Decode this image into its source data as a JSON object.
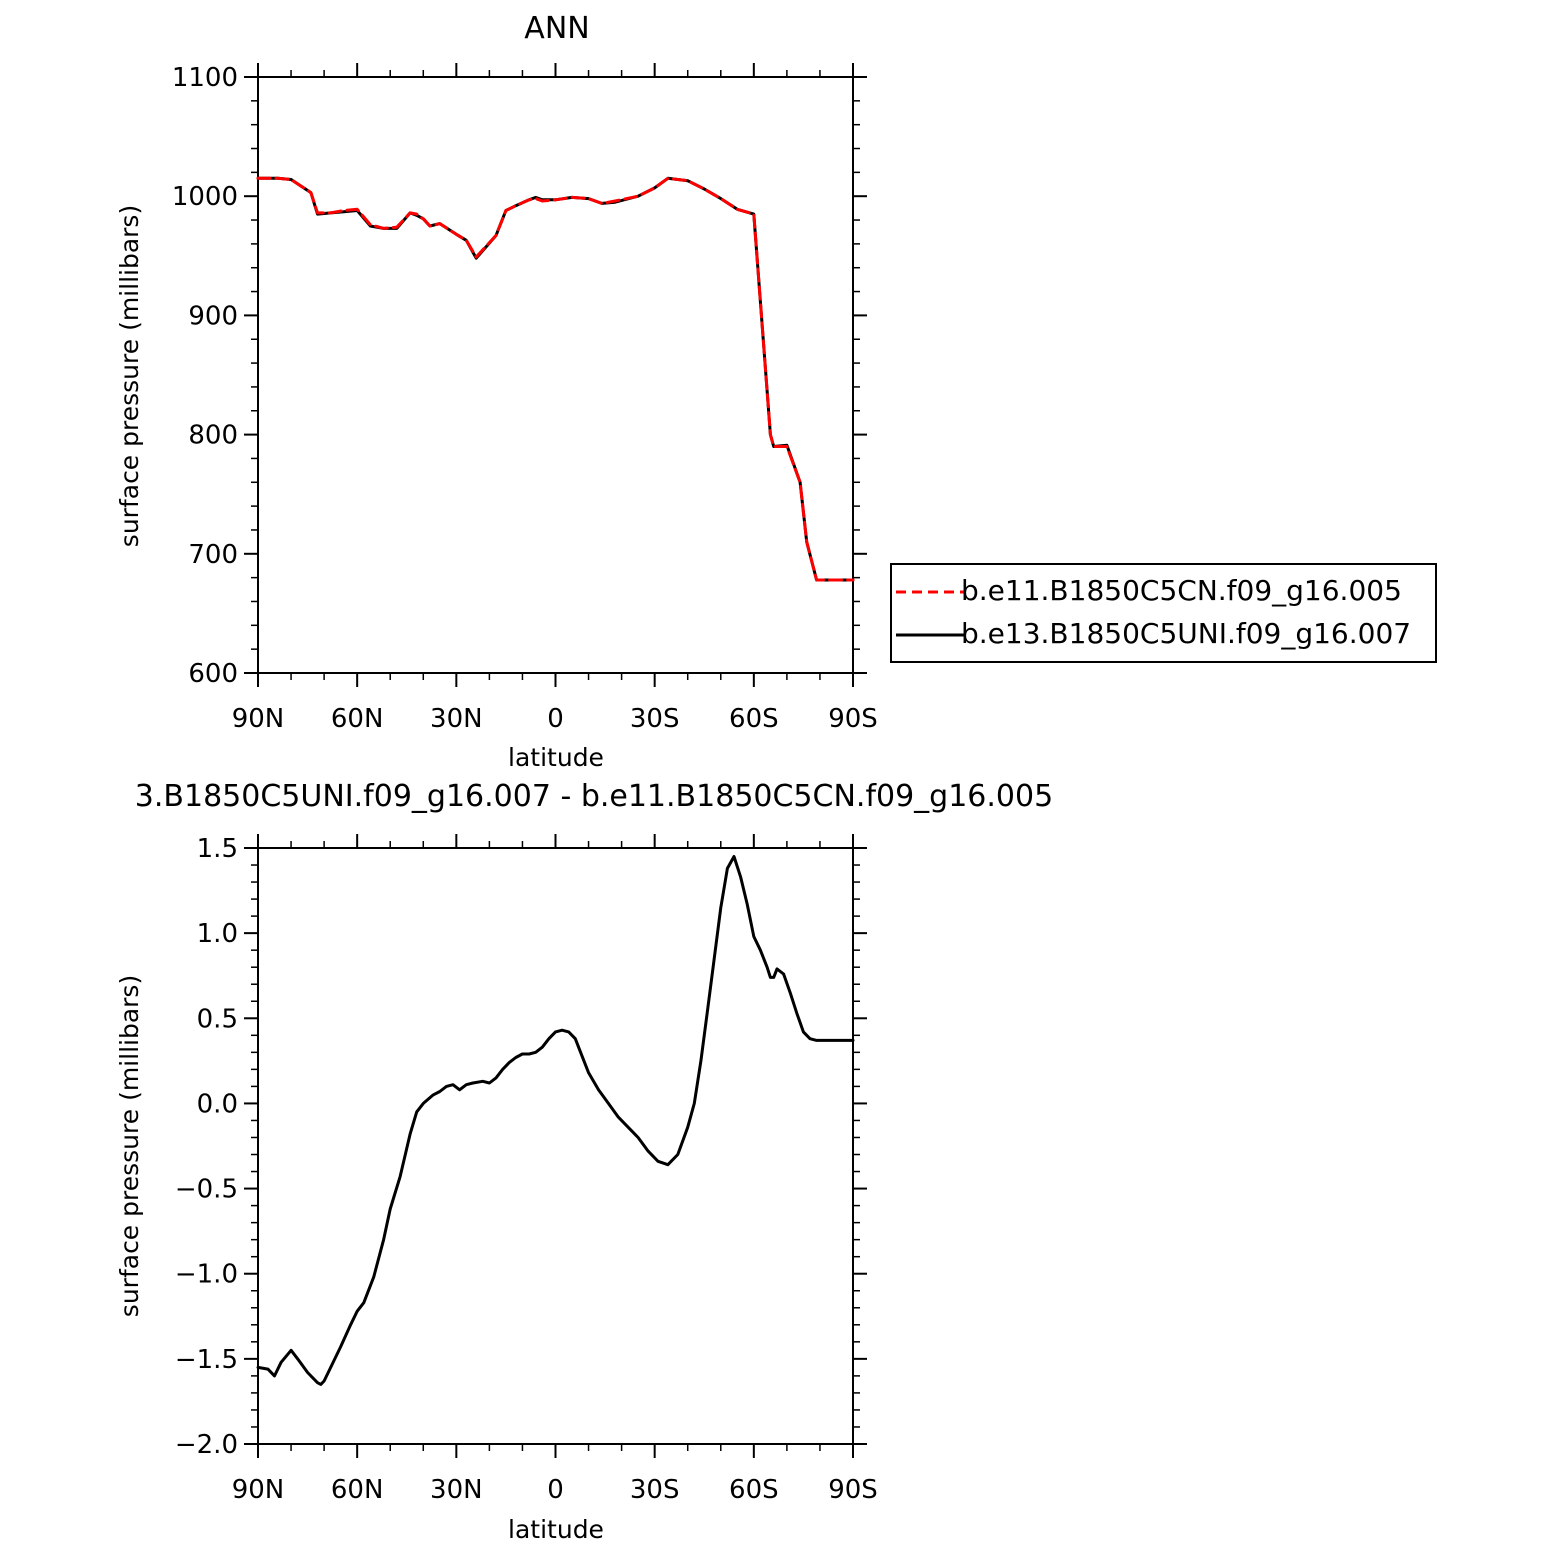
{
  "chart_data": [
    {
      "type": "line",
      "title": "ANN",
      "xlabel": "latitude",
      "ylabel": "surface pressure (millibars)",
      "xlim": [
        90,
        -90
      ],
      "ylim": [
        600,
        1100
      ],
      "x_ticks": [
        90,
        60,
        30,
        0,
        -30,
        -60,
        -90
      ],
      "x_tick_labels": [
        "90N",
        "60N",
        "30N",
        "0",
        "30S",
        "60S",
        "90S"
      ],
      "y_ticks": [
        600,
        700,
        800,
        900,
        1000,
        1100
      ],
      "y_tick_labels": [
        "600",
        "700",
        "800",
        "900",
        "1000",
        "1100"
      ],
      "legend_position": "right",
      "series": [
        {
          "name": "b.e11.B1850C5CN.f09_g16.005",
          "color": "#ff0000",
          "dash": "dashed",
          "x": [
            90,
            84,
            80,
            74,
            72,
            68,
            64,
            60,
            56,
            52,
            48,
            44,
            42,
            40,
            38,
            35,
            30,
            27,
            24,
            18,
            15,
            12,
            8,
            6,
            4,
            0,
            -5,
            -10,
            -14,
            -18,
            -25,
            -30,
            -34,
            -40,
            -45,
            -50,
            -55,
            -60,
            -65,
            -66,
            -70,
            -74,
            -76,
            -79,
            -81,
            -84,
            -86,
            -88,
            -90
          ],
          "values": [
            1015,
            1015,
            1014,
            1003,
            986,
            986,
            988,
            989,
            976,
            973,
            974,
            986,
            985,
            981,
            975,
            977,
            968,
            963,
            949,
            967,
            988,
            992,
            997,
            998,
            996,
            997,
            999,
            998,
            994,
            996,
            1000,
            1007,
            1015,
            1013,
            1006,
            998,
            989,
            985,
            800,
            790,
            790,
            760,
            710,
            678,
            678,
            678,
            678,
            678,
            678
          ]
        },
        {
          "name": "b.e13.B1850C5UNI.f09_g16.007",
          "color": "#000000",
          "dash": "solid",
          "x": [
            90,
            84,
            80,
            74,
            72,
            68,
            64,
            60,
            56,
            52,
            48,
            44,
            42,
            40,
            38,
            35,
            30,
            27,
            24,
            18,
            15,
            12,
            8,
            6,
            4,
            0,
            -5,
            -10,
            -14,
            -18,
            -25,
            -30,
            -34,
            -40,
            -45,
            -50,
            -55,
            -60,
            -65,
            -66,
            -70,
            -74,
            -76,
            -79,
            -81,
            -84,
            -86,
            -88,
            -90
          ],
          "values": [
            1015,
            1015,
            1014,
            1003,
            985,
            986,
            987,
            988,
            975,
            973,
            973,
            986,
            984,
            981,
            975,
            977,
            968,
            963,
            948,
            967,
            988,
            992,
            997,
            999,
            997,
            997,
            999,
            998,
            994,
            995,
            1000,
            1007,
            1015,
            1013,
            1006,
            998,
            989,
            985,
            800,
            790,
            791,
            760,
            710,
            678,
            678,
            678,
            678,
            678,
            678
          ]
        }
      ]
    },
    {
      "type": "line",
      "title": "3.B1850C5UNI.f09_g16.007 - b.e11.B1850C5CN.f09_g16.005",
      "xlabel": "latitude",
      "ylabel": "surface pressure (millibars)",
      "xlim": [
        90,
        -90
      ],
      "ylim": [
        -2.0,
        1.5
      ],
      "x_ticks": [
        90,
        60,
        30,
        0,
        -30,
        -60,
        -90
      ],
      "x_tick_labels": [
        "90N",
        "60N",
        "30N",
        "0",
        "30S",
        "60S",
        "90S"
      ],
      "y_ticks": [
        1.5,
        1.0,
        0.5,
        0.0,
        -0.5,
        -1.0,
        -1.5,
        -2.0
      ],
      "y_tick_labels": [
        "1.5",
        "1.0",
        "0.5",
        "0.0",
        "−0.5",
        "−1.0",
        "−1.5",
        "−2.0"
      ],
      "series": [
        {
          "color": "#000000",
          "dash": "solid",
          "x": [
            90,
            87,
            85,
            83,
            80,
            78,
            75,
            72,
            71,
            70,
            68,
            65,
            62,
            60,
            58,
            55,
            52,
            50,
            47,
            44,
            42,
            40,
            37,
            35,
            33,
            31,
            29,
            27,
            25,
            22,
            20,
            18,
            16,
            14,
            12,
            10,
            8,
            6,
            4,
            2,
            0,
            -2,
            -4,
            -6,
            -8,
            -10,
            -13,
            -16,
            -19,
            -22,
            -25,
            -28,
            -31,
            -34,
            -37,
            -40,
            -42,
            -44,
            -46,
            -48,
            -50,
            -52,
            -54,
            -56,
            -58,
            -60,
            -62,
            -64,
            -65,
            -66,
            -67,
            -69,
            -71,
            -73,
            -75,
            -77,
            -79,
            -81,
            -83,
            -85,
            -86,
            -88,
            -90
          ],
          "values": [
            -1.55,
            -1.56,
            -1.6,
            -1.52,
            -1.45,
            -1.5,
            -1.58,
            -1.64,
            -1.65,
            -1.63,
            -1.55,
            -1.43,
            -1.3,
            -1.22,
            -1.17,
            -1.02,
            -0.8,
            -0.62,
            -0.43,
            -0.18,
            -0.05,
            0.0,
            0.05,
            0.07,
            0.1,
            0.11,
            0.08,
            0.11,
            0.12,
            0.13,
            0.12,
            0.15,
            0.2,
            0.24,
            0.27,
            0.29,
            0.29,
            0.3,
            0.33,
            0.38,
            0.42,
            0.43,
            0.42,
            0.38,
            0.28,
            0.18,
            0.08,
            0.0,
            -0.08,
            -0.14,
            -0.2,
            -0.28,
            -0.34,
            -0.36,
            -0.3,
            -0.14,
            0.0,
            0.25,
            0.55,
            0.85,
            1.15,
            1.38,
            1.45,
            1.33,
            1.17,
            0.98,
            0.9,
            0.8,
            0.74,
            0.74,
            0.79,
            0.76,
            0.65,
            0.53,
            0.42,
            0.38,
            0.37,
            0.37,
            0.37,
            0.37,
            0.37,
            0.37,
            0.37
          ]
        }
      ]
    }
  ]
}
